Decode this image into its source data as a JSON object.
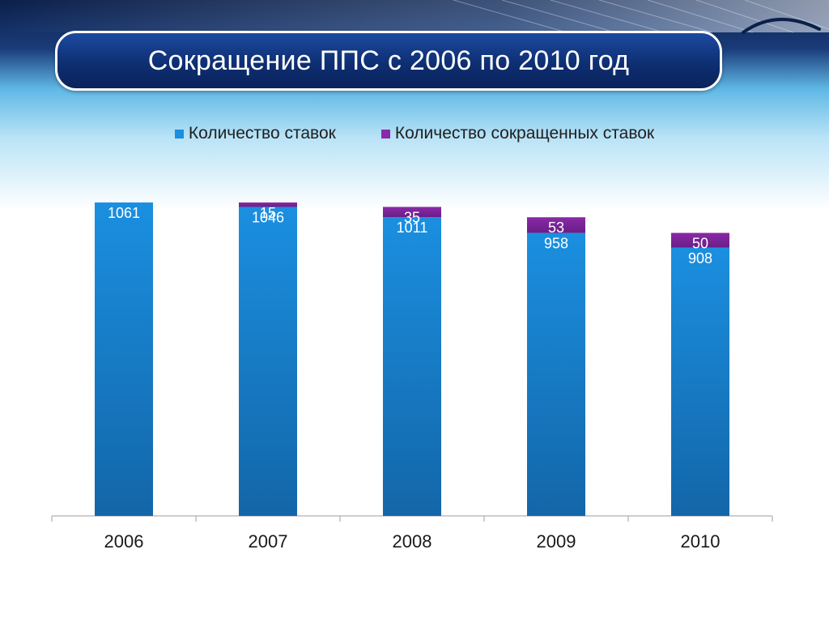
{
  "title": "Сокращение ППС с 2006 по 2010 год",
  "colors": {
    "series1": "#1b8fe0",
    "series1_dark": "#1366a8",
    "series2": "#8a2aa8",
    "series2_dark": "#6a1d86",
    "axis": "#bdbdbd",
    "tick_label": "#1a1a1a",
    "bar_label": "#ffffff"
  },
  "chart_data": {
    "type": "bar",
    "stacked": true,
    "categories": [
      "2006",
      "2007",
      "2008",
      "2009",
      "2010"
    ],
    "series": [
      {
        "name": "Количество ставок",
        "values": [
          1061,
          1046,
          1011,
          958,
          908
        ]
      },
      {
        "name": "Количество сокращенных ставок",
        "values": [
          null,
          15,
          35,
          53,
          50
        ]
      }
    ],
    "data_labels": [
      [
        "1061",
        "1046",
        "1011",
        "958",
        "908"
      ],
      [
        "",
        "15",
        "35",
        "53",
        "50"
      ]
    ],
    "ylim": [
      0,
      1061
    ],
    "grid": false,
    "legend": "top"
  }
}
